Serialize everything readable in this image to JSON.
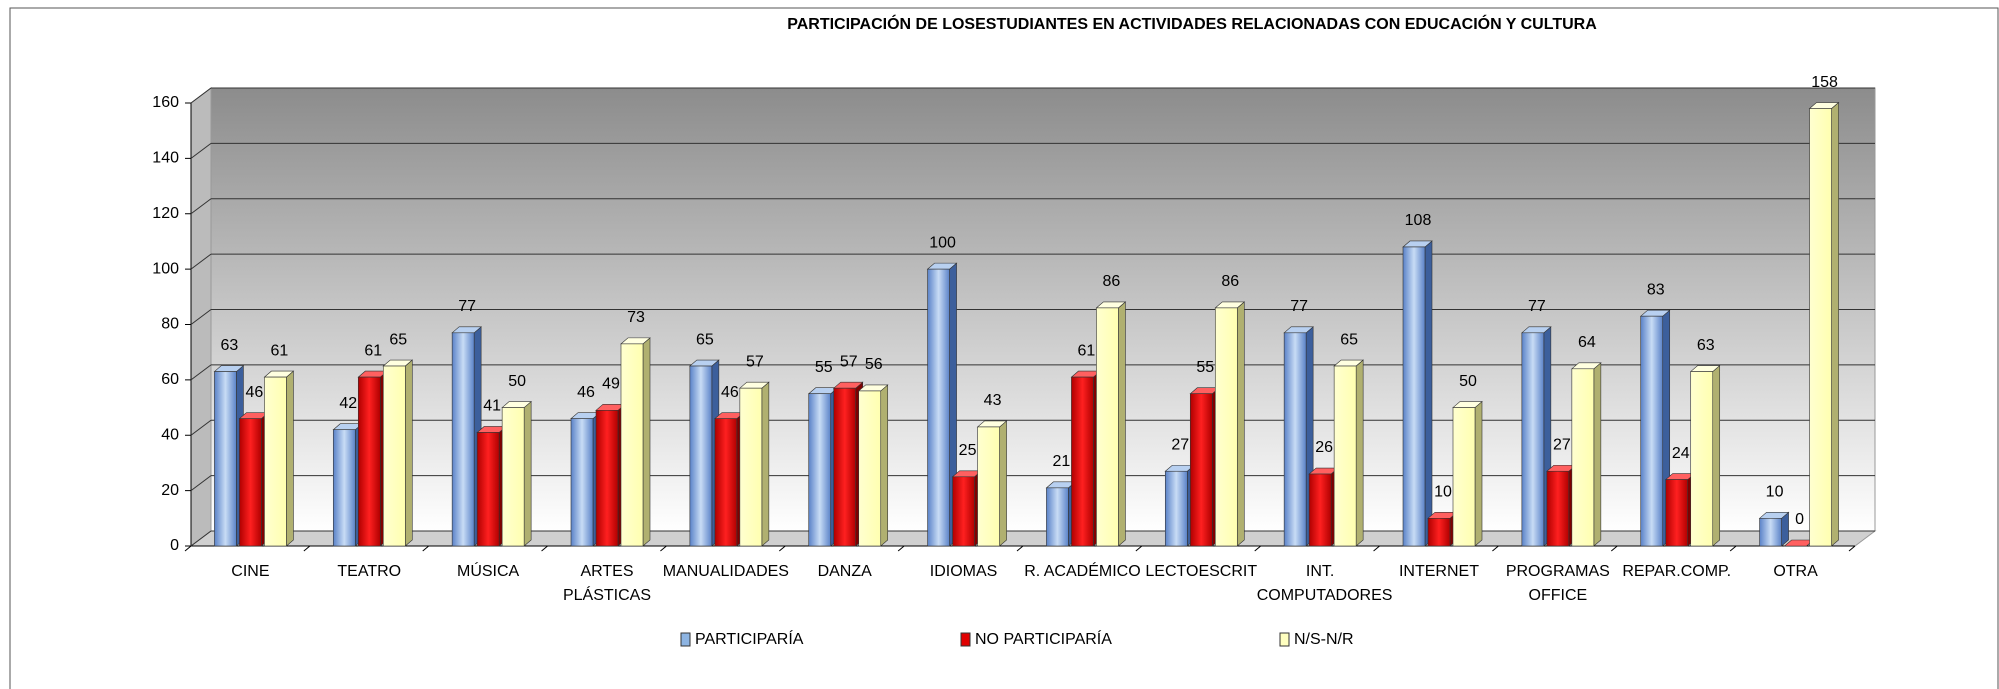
{
  "chart_data": {
    "type": "bar3d",
    "title": "PARTICIPACIÓN DE LOSESTUDIANTES EN ACTIVIDADES RELACIONADAS CON EDUCACIÓN Y CULTURA",
    "categories": [
      "CINE",
      "TEATRO",
      "MÚSICA",
      "ARTES PLÁSTICAS",
      "MANUALIDADES",
      "DANZA",
      "IDIOMAS",
      "R. ACADÉMICO",
      "LECTOESCRIT",
      "INT. COMPUTADORES",
      "INTERNET",
      "PROGRAMAS OFFICE",
      "REPAR.COMP.",
      "OTRA"
    ],
    "series": [
      {
        "name": "PARTICIPARÍA",
        "color": "#8db4e2",
        "values": [
          63,
          42,
          77,
          46,
          65,
          55,
          100,
          21,
          27,
          77,
          108,
          77,
          83,
          10
        ]
      },
      {
        "name": "NO PARTICIPARÍA",
        "color": "#e00000",
        "values": [
          46,
          61,
          41,
          49,
          46,
          57,
          25,
          61,
          55,
          26,
          10,
          27,
          24,
          0
        ]
      },
      {
        "name": "N/S-N/R",
        "color": "#ffffc0",
        "values": [
          61,
          65,
          50,
          73,
          57,
          56,
          43,
          86,
          86,
          65,
          50,
          64,
          63,
          158
        ]
      }
    ],
    "ylim": [
      0,
      160
    ],
    "yticks": [
      0,
      20,
      40,
      60,
      80,
      100,
      120,
      140,
      160
    ],
    "grid": true,
    "legend": "bottom"
  }
}
